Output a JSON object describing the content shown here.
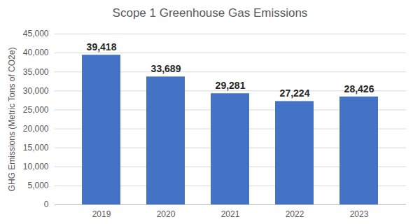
{
  "chart_data": {
    "type": "bar",
    "title": "Scope 1 Greenhouse Gas Emissions",
    "y_label": "GHG Emissions (Metric Tons of CO2e)",
    "categories": [
      "2019",
      "2020",
      "2021",
      "2022",
      "2023"
    ],
    "values": [
      39418,
      33689,
      29281,
      27224,
      28426
    ],
    "value_labels": [
      "39,418",
      "33,689",
      "29,281",
      "27,224",
      "28,426"
    ],
    "data_labels": true,
    "color": "#4472c4",
    "ylim": [
      0,
      45000
    ],
    "yticks": [
      0,
      {
        "value": 5000,
        "label": "5,000"
      },
      {
        "value": 10000,
        "label": "10,000"
      },
      {
        "value": 15000,
        "label": "15,000"
      },
      {
        "value": 20000,
        "label": "20,000"
      },
      {
        "value": 25000,
        "label": "25,000"
      },
      {
        "value": 30000,
        "label": "30,000"
      },
      {
        "value": 35000,
        "label": "35,000"
      },
      {
        "value": 40000,
        "label": "40,000"
      },
      {
        "value": 45000,
        "label": "45,000"
      }
    ],
    "grid": true
  }
}
